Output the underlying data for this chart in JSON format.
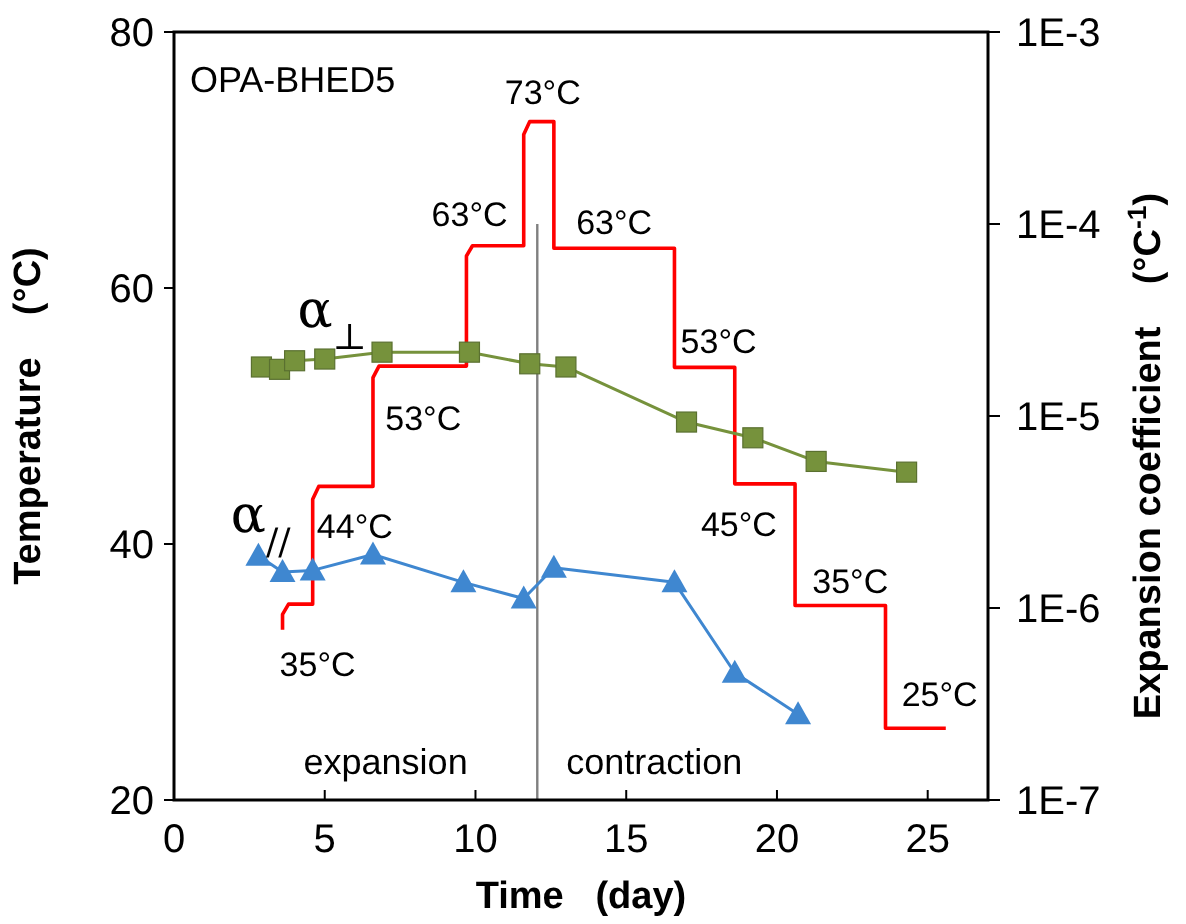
{
  "chart_data": {
    "type": "line",
    "xlabel": "Time   (day)",
    "ylabel": "Temperature    (°C)",
    "y2label": "Expansion coefficient    (°C$^{-1}$)",
    "xlim": [
      0,
      27
    ],
    "xticks": [
      0,
      5,
      10,
      15,
      20,
      25
    ],
    "ylim": [
      20,
      80
    ],
    "yticks": [
      20,
      40,
      60,
      80
    ],
    "y2lim": [
      1e-07,
      0.001
    ],
    "y2ticks": [
      {
        "value": 1e-07,
        "label": "1E-7"
      },
      {
        "value": 1e-06,
        "label": "1E-6"
      },
      {
        "value": 1e-05,
        "label": "1E-5"
      },
      {
        "value": 0.0001,
        "label": "1E-4"
      },
      {
        "value": 0.001,
        "label": "1E-3"
      }
    ],
    "log": "y2",
    "grid": false,
    "series": [
      {
        "color": "#ff0000",
        "marker": "none",
        "x": [
          3.6,
          3.6,
          3.8,
          4.6,
          4.6,
          4.8,
          6.6,
          6.6,
          6.8,
          9.7,
          9.7,
          9.9,
          11.6,
          11.6,
          11.8,
          12.6,
          12.6,
          16.6,
          16.6,
          18.6,
          18.6,
          20.6,
          20.6,
          23.6,
          23.6,
          25.6
        ],
        "values": [
          33.3,
          34.5,
          35.3,
          35.3,
          43.5,
          44.5,
          44.5,
          53,
          53.9,
          53.9,
          62.5,
          63.3,
          63.3,
          72,
          73,
          73,
          63.1,
          63.1,
          53.8,
          53.8,
          44.7,
          44.7,
          35.2,
          35.2,
          25.6,
          25.6
        ]
      },
      {
        "name": "α$_{⊥}$",
        "axis": "y2",
        "color": "#76923c",
        "marker": "square",
        "x": [
          2.9,
          3.5,
          4.0,
          5.0,
          6.9,
          9.8,
          11.8,
          13.0,
          17.0,
          19.2,
          21.3,
          24.3
        ],
        "values": [
          1.8e-05,
          1.75e-05,
          1.94e-05,
          1.98e-05,
          2.15e-05,
          2.15e-05,
          1.87e-05,
          1.8e-05,
          9.3e-06,
          7.7e-06,
          5.8e-06,
          5.1e-06
        ]
      },
      {
        "name": "α$_{//}$",
        "axis": "y2",
        "color": "#3f87d0",
        "marker": "triangle",
        "x": [
          2.8,
          3.6,
          4.6,
          6.6,
          9.6,
          11.6,
          12.6,
          16.6,
          18.6,
          20.7
        ],
        "values": [
          1.87e-06,
          1.54e-06,
          1.57e-06,
          1.9e-06,
          1.36e-06,
          1.12e-06,
          1.62e-06,
          1.36e-06,
          4.6e-07,
          2.8e-07
        ]
      }
    ],
    "ref_lines": [
      {
        "axis": "x",
        "value": 12.05,
        "color": "#808080"
      }
    ],
    "annotations": [
      "OPA-BHED5",
      {
        "text": "35°C",
        "x": 4.1,
        "y": 35.3
      },
      {
        "text": "44°C",
        "x": 5.6,
        "y": 44.5
      },
      {
        "text": "53°C",
        "x": 8.2,
        "y": 53.9
      },
      {
        "text": "63°C",
        "x": 10.6,
        "y": 63.3
      },
      {
        "text": "73°C",
        "x": 12.1,
        "y": 73
      },
      {
        "text": "63°C",
        "x": 14.6,
        "y": 63.1
      },
      {
        "text": "53°C",
        "x": 17.6,
        "y": 53.8
      },
      {
        "text": "45°C",
        "x": 19.6,
        "y": 44.7
      },
      {
        "text": "35°C",
        "x": 22.1,
        "y": 35.2
      },
      {
        "text": "25°C",
        "x": 24.6,
        "y": 25.6
      },
      "expansion",
      "contraction"
    ]
  }
}
